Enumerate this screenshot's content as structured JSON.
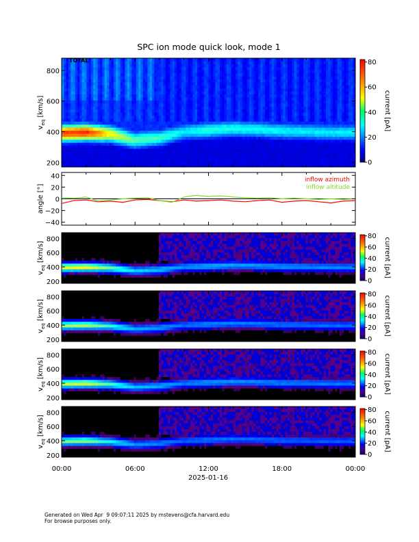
{
  "chart_data": [
    {
      "type": "heatmap",
      "title": "SPC ion mode quick look, mode 1",
      "panel_label": "TOTAL",
      "ylabel_main": "v",
      "ylabel_sub": "eq",
      "ylabel_unit": " [km/s]",
      "yticks": [
        "200",
        "400",
        "600",
        "800"
      ],
      "ylim": [
        170,
        880
      ],
      "colorbar_label": "current [pA]",
      "colorbar_ticks": [
        "0",
        "20",
        "40",
        "60",
        "80"
      ],
      "colorbar_range": [
        0,
        82
      ],
      "ridge_speed_km_s": [
        {
          "t": "00:00",
          "v": 390
        },
        {
          "t": "02:00",
          "v": 395
        },
        {
          "t": "04:00",
          "v": 385
        },
        {
          "t": "06:00",
          "v": 345
        },
        {
          "t": "08:00",
          "v": 360
        },
        {
          "t": "10:00",
          "v": 400
        },
        {
          "t": "12:00",
          "v": 410
        },
        {
          "t": "14:00",
          "v": 420
        },
        {
          "t": "16:00",
          "v": 415
        },
        {
          "t": "18:00",
          "v": 405
        },
        {
          "t": "20:00",
          "v": 400
        },
        {
          "t": "22:00",
          "v": 395
        },
        {
          "t": "24:00",
          "v": 395
        }
      ],
      "peak_current_pA": [
        {
          "t": "00:00",
          "c": 65
        },
        {
          "t": "02:00",
          "c": 68
        },
        {
          "t": "04:00",
          "c": 50
        },
        {
          "t": "06:00",
          "c": 36
        },
        {
          "t": "08:00",
          "c": 34
        },
        {
          "t": "10:00",
          "c": 28
        },
        {
          "t": "12:00",
          "c": 32
        },
        {
          "t": "16:00",
          "c": 30
        },
        {
          "t": "20:00",
          "c": 28
        },
        {
          "t": "24:00",
          "c": 28
        }
      ]
    },
    {
      "type": "line",
      "ylabel": "angle [°]",
      "yticks": [
        "−40",
        "−20",
        "0",
        "20",
        "40"
      ],
      "ylim": [
        -45,
        45
      ],
      "series": [
        {
          "name": "inflow azimuth",
          "color": "#ff0000",
          "x": [
            "00:00",
            "01:00",
            "02:00",
            "03:00",
            "04:00",
            "05:00",
            "06:00",
            "07:00",
            "08:00",
            "09:00",
            "10:00",
            "11:00",
            "12:00",
            "13:00",
            "14:00",
            "15:00",
            "16:00",
            "17:00",
            "18:00",
            "19:00",
            "20:00",
            "21:00",
            "22:00",
            "23:00",
            "24:00"
          ],
          "values": [
            -8,
            -3,
            -2,
            -5,
            -4,
            -6,
            -2,
            -1,
            -3,
            -5,
            -2,
            -4,
            -3,
            -2,
            -4,
            -5,
            -3,
            -2,
            -6,
            -4,
            -3,
            -5,
            -7,
            -4,
            -3
          ]
        },
        {
          "name": "inflow altitude",
          "color": "#7ddc1f",
          "x": [
            "00:00",
            "01:00",
            "02:00",
            "03:00",
            "04:00",
            "05:00",
            "06:00",
            "07:00",
            "08:00",
            "09:00",
            "10:00",
            "11:00",
            "12:00",
            "13:00",
            "14:00",
            "15:00",
            "16:00",
            "17:00",
            "18:00",
            "19:00",
            "20:00",
            "21:00",
            "22:00",
            "23:00",
            "24:00"
          ],
          "values": [
            2,
            1,
            3,
            -4,
            -2,
            0,
            1,
            2,
            -3,
            -6,
            3,
            6,
            4,
            5,
            3,
            2,
            1,
            2,
            0,
            1,
            0,
            -1,
            0,
            -1,
            0
          ]
        }
      ]
    },
    {
      "type": "heatmap",
      "ylabel_main": "v",
      "ylabel_sub": "eq",
      "ylabel_unit": " [km/s]",
      "yticks": [
        "200",
        "400",
        "600",
        "800"
      ],
      "colorbar_label": "current [pA]",
      "colorbar_ticks": [
        "0",
        "20",
        "40",
        "60",
        "80"
      ]
    },
    {
      "type": "heatmap",
      "ylabel_main": "v",
      "ylabel_sub": "eq",
      "ylabel_unit": " [km/s]",
      "yticks": [
        "200",
        "400",
        "600",
        "800"
      ],
      "colorbar_label": "current [pA]",
      "colorbar_ticks": [
        "0",
        "20",
        "40",
        "60",
        "80"
      ]
    },
    {
      "type": "heatmap",
      "ylabel_main": "v",
      "ylabel_sub": "eq",
      "ylabel_unit": " [km/s]",
      "yticks": [
        "200",
        "400",
        "600",
        "800"
      ],
      "colorbar_label": "current [pA]",
      "colorbar_ticks": [
        "0",
        "20",
        "40",
        "60",
        "80"
      ]
    },
    {
      "type": "heatmap",
      "ylabel_main": "v",
      "ylabel_sub": "eq",
      "ylabel_unit": " [km/s]",
      "yticks": [
        "200",
        "400",
        "600",
        "800"
      ],
      "colorbar_label": "current [pA]",
      "colorbar_ticks": [
        "0",
        "20",
        "40",
        "60",
        "80"
      ]
    }
  ],
  "time_axis": {
    "tick_labels": [
      "00:00",
      "06:00",
      "12:00",
      "18:00",
      "00:00"
    ],
    "date_label": "2025-01-16"
  },
  "footer": {
    "line1": "Generated on Wed Apr  9 09:07:11 2025 by mstevens@cfa.harvard.edu",
    "line2": "For browse purposes only."
  }
}
